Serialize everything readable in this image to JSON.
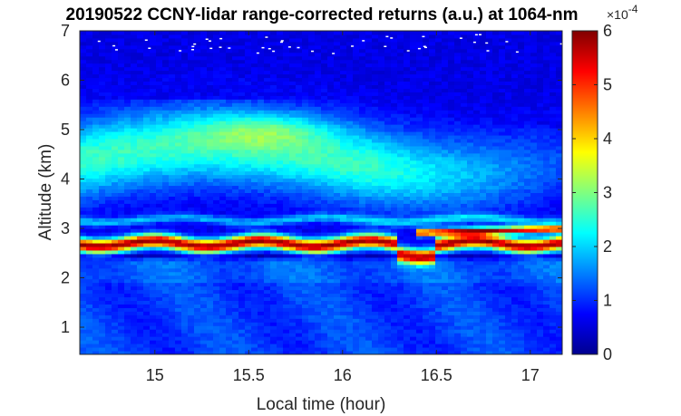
{
  "chart_data": {
    "type": "heatmap",
    "title": "20190522 CCNY-lidar range-corrected returns (a.u.) at 1064-nm",
    "xlabel": "Local time (hour)",
    "ylabel": "Altitude (km)",
    "xlim": [
      14.6,
      17.17
    ],
    "ylim": [
      0.45,
      7.0
    ],
    "x_ticks": [
      "15",
      "15.5",
      "16",
      "16.5",
      "17"
    ],
    "x_tick_values": [
      15,
      15.5,
      16,
      16.5,
      17
    ],
    "y_ticks": [
      "1",
      "2",
      "3",
      "4",
      "5",
      "6",
      "7"
    ],
    "y_tick_values": [
      1,
      2,
      3,
      4,
      5,
      6,
      7
    ],
    "colorbar": {
      "ticks": [
        "0",
        "1",
        "2",
        "3",
        "4",
        "5",
        "6"
      ],
      "tick_values": [
        0,
        1,
        2,
        3,
        4,
        5,
        6
      ],
      "multiplier_base": "×10",
      "multiplier_exp": "-4",
      "range": [
        0,
        6
      ],
      "colormap": "jet"
    },
    "features": [
      {
        "name": "boundary layer",
        "altitude_km": [
          0.45,
          2.4
        ],
        "value_range": [
          0.8,
          1.6
        ]
      },
      {
        "name": "dense aerosol layer",
        "altitude_km": [
          2.55,
          2.85
        ],
        "value_range": [
          5.0,
          6.0
        ]
      },
      {
        "name": "secondary layer",
        "altitude_km": [
          3.1,
          3.3
        ],
        "value_range": [
          1.5,
          2.0
        ]
      },
      {
        "name": "elevated smoke plume",
        "altitude_km": [
          3.5,
          5.6
        ],
        "value_range": [
          2.0,
          3.5
        ]
      },
      {
        "name": "free troposphere",
        "altitude_km": [
          5.6,
          7.0
        ],
        "value_range": [
          0.3,
          1.0
        ]
      }
    ]
  }
}
